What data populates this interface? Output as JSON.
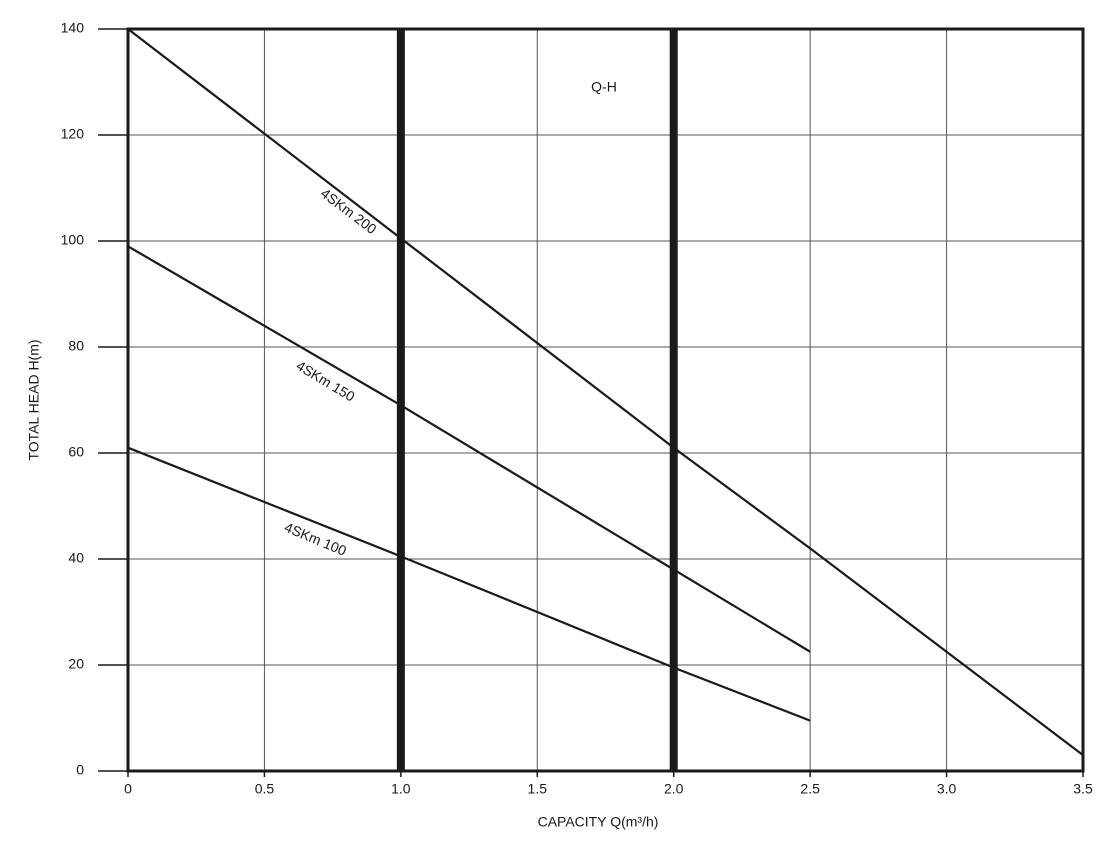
{
  "chart_data": {
    "type": "line",
    "annotation": "Q-H",
    "x_label": "CAPACITY Q(m³/h)",
    "y_label": "TOTAL HEAD H(m)",
    "x": [
      0,
      1,
      2,
      2.5,
      3.5
    ],
    "series": [
      {
        "name": "4SKm 200",
        "color": "#1a1a1a",
        "values": [
          140,
          100.5,
          61,
          42,
          3
        ]
      },
      {
        "name": "4SKm 150",
        "color": "#1a1a1a",
        "values": [
          99,
          69,
          38,
          22.5,
          null
        ]
      },
      {
        "name": "4SKm 100",
        "color": "#1a1a1a",
        "values": [
          61,
          40.5,
          19.5,
          9.5,
          null
        ]
      }
    ],
    "xlim": [
      0,
      3.5
    ],
    "xticks": [
      0,
      0.5,
      {
        "value": 1,
        "label": "1.0"
      },
      1.5,
      {
        "value": 2,
        "label": "2.0"
      },
      2.5,
      {
        "value": 3,
        "label": "3.0"
      },
      3.5
    ],
    "ylim": [
      0,
      140
    ],
    "yticks": [
      0,
      20,
      40,
      60,
      80,
      100,
      120,
      140
    ],
    "grid": true
  }
}
